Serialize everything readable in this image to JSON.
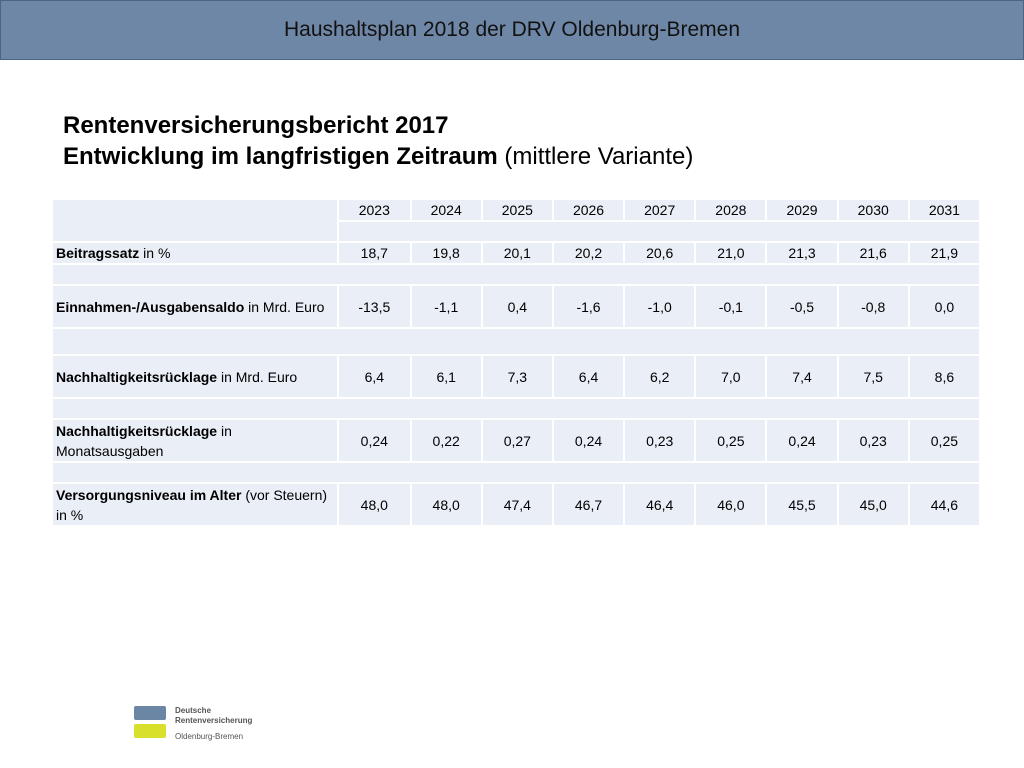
{
  "header": {
    "title": "Haushaltsplan 2018 der DRV Oldenburg-Bremen"
  },
  "headline": {
    "line1": "Rentenversicherungsbericht 2017",
    "line2_bold": "Entwicklung im langfristigen Zeitraum",
    "line2_normal": " (mittlere Variante)"
  },
  "table": {
    "years": [
      "2023",
      "2024",
      "2025",
      "2026",
      "2027",
      "2028",
      "2029",
      "2030",
      "2031"
    ],
    "rows": [
      {
        "bold": "Beitragssatz",
        "normal": " in %",
        "values": [
          "18,7",
          "19,8",
          "20,1",
          "20,2",
          "20,6",
          "21,0",
          "21,3",
          "21,6",
          "21,9"
        ]
      },
      {
        "bold": "Einnahmen-/Ausgabensaldo",
        "normal": " in Mrd. Euro",
        "values": [
          "-13,5",
          "-1,1",
          "0,4",
          "-1,6",
          "-1,0",
          "-0,1",
          "-0,5",
          "-0,8",
          "0,0"
        ]
      },
      {
        "bold": "Nachhaltigkeitsrücklage",
        "normal": " in Mrd. Euro",
        "values": [
          "6,4",
          "6,1",
          "7,3",
          "6,4",
          "6,2",
          "7,0",
          "7,4",
          "7,5",
          "8,6"
        ]
      },
      {
        "bold": "Nachhaltigkeitsrücklage",
        "normal": " in Monatsausgaben",
        "values": [
          "0,24",
          "0,22",
          "0,27",
          "0,24",
          "0,23",
          "0,25",
          "0,24",
          "0,23",
          "0,25"
        ]
      },
      {
        "bold": "Versorgungsniveau im Alter",
        "normal": " (vor Steuern) in %",
        "values": [
          "48,0",
          "48,0",
          "47,4",
          "46,7",
          "46,4",
          "46,0",
          "45,5",
          "45,0",
          "44,6"
        ]
      }
    ]
  },
  "logo": {
    "line1": "Deutsche",
    "line2": "Rentenversicherung",
    "sub": "Oldenburg-Bremen",
    "colors": {
      "top": "#6b85a4",
      "bottom": "#d9e02b"
    }
  }
}
